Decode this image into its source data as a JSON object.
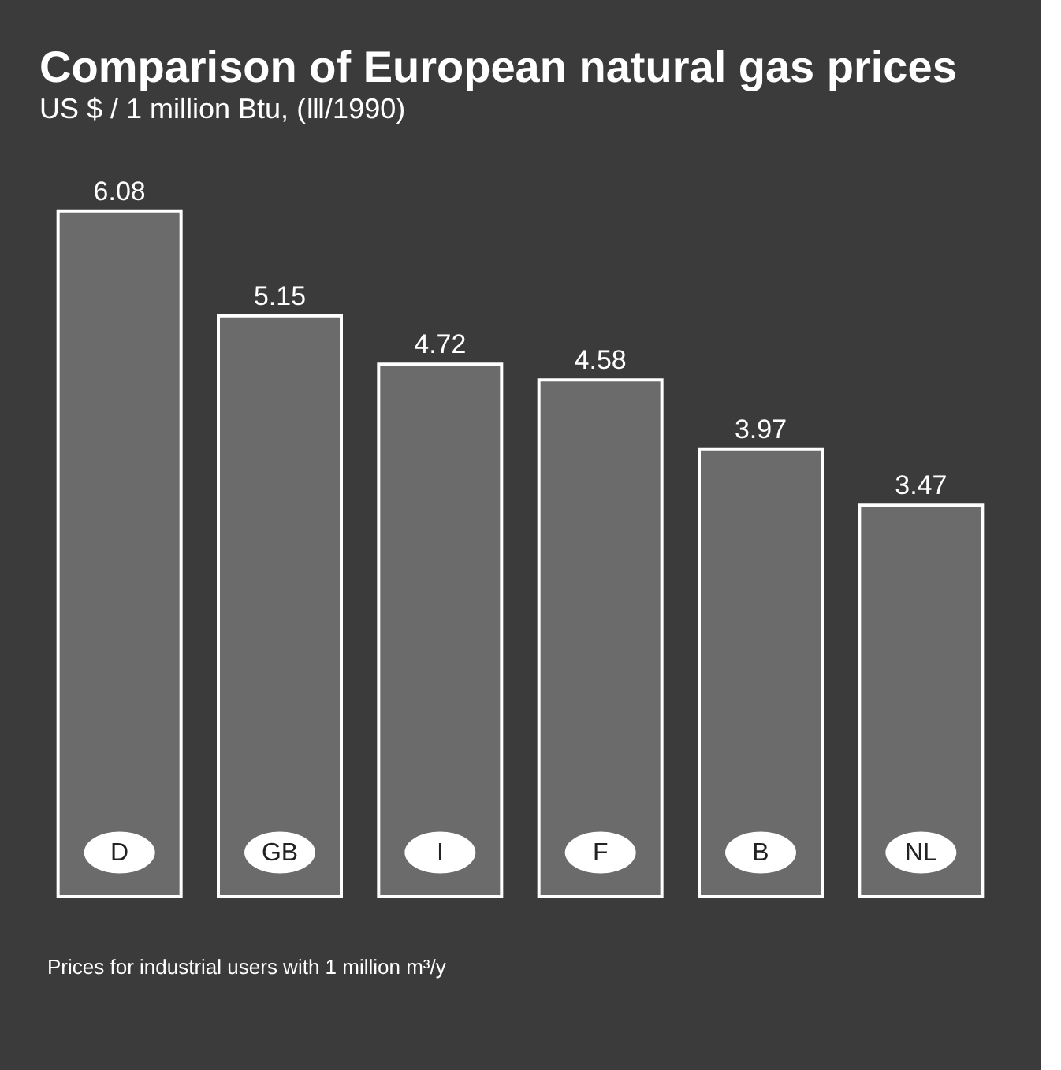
{
  "chart_data": {
    "type": "bar",
    "title": "Comparison of European natural gas prices",
    "subtitle": "US $ / 1 million Btu, (Ⅲ/1990)",
    "categories": [
      "D",
      "GB",
      "I",
      "F",
      "B",
      "NL"
    ],
    "values": [
      6.08,
      5.15,
      4.72,
      4.58,
      3.97,
      3.47
    ],
    "color": "#6b6b6b",
    "data_labels": true,
    "annotations": [
      "Prices for industrial users with 1 million m³/y"
    ]
  }
}
